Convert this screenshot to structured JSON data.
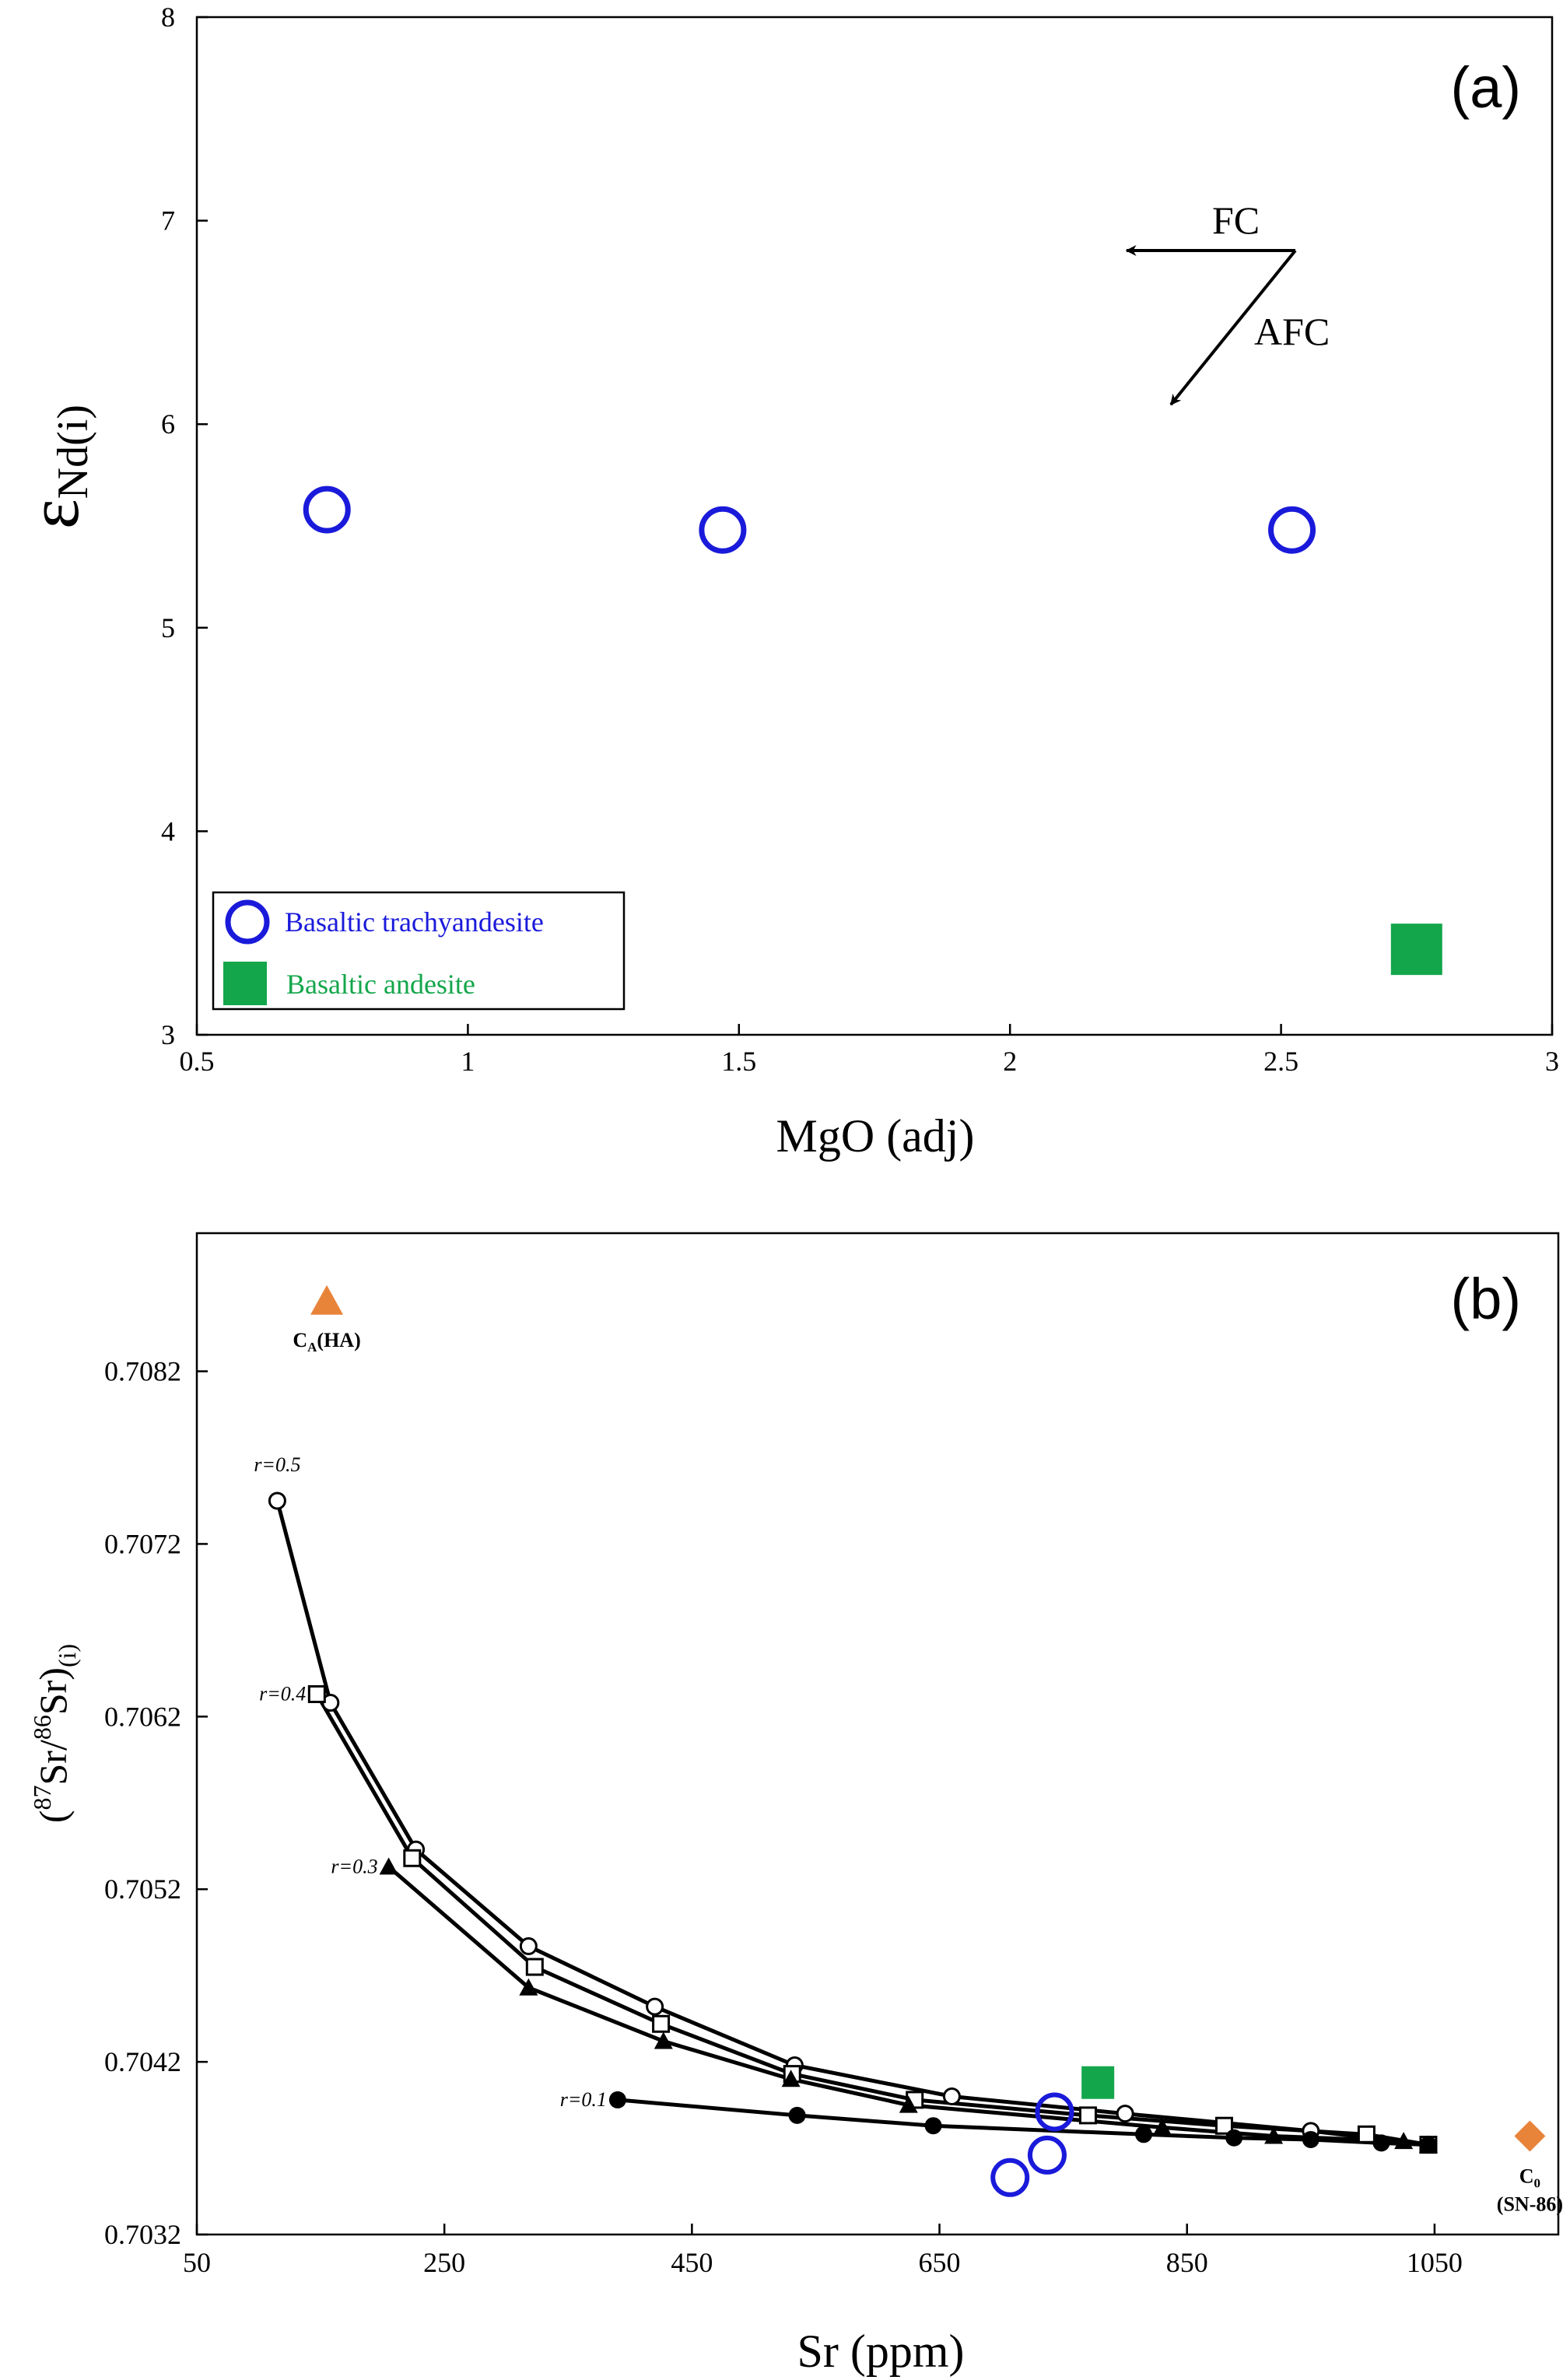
{
  "chart_data": [
    {
      "panel": "(a)",
      "type": "scatter",
      "xlabel": "MgO (adj)",
      "ylabel": "εNd(i)",
      "ylabel_main": "ε",
      "ylabel_sub": "Nd(i)",
      "xlim": [
        0.5,
        3
      ],
      "ylim": [
        3,
        8
      ],
      "xticks": [
        "0.5",
        "1",
        "1.5",
        "2",
        "2.5",
        "3"
      ],
      "yticks": [
        "3",
        "4",
        "5",
        "6",
        "7",
        "8"
      ],
      "grid": false,
      "legend_position": "bottom-left",
      "series": [
        {
          "name": "Basaltic trachyandesite",
          "marker": "open-circle",
          "color": "#1a1adb",
          "points": [
            [
              0.74,
              5.58
            ],
            [
              1.47,
              5.48
            ],
            [
              2.52,
              5.48
            ]
          ]
        },
        {
          "name": "Basaltic andesite",
          "marker": "filled-square",
          "color": "#13a64b",
          "points": [
            [
              2.75,
              3.42
            ]
          ]
        }
      ],
      "annotations": {
        "fc": "FC",
        "afc": "AFC"
      }
    },
    {
      "panel": "(b)",
      "type": "line",
      "xlabel": "Sr (ppm)",
      "ylabel": "(87Sr/86Sr)(i)",
      "xlim": [
        50,
        1150
      ],
      "ylim": [
        0.7032,
        0.709
      ],
      "xticks": [
        "50",
        "250",
        "450",
        "650",
        "850",
        "1050"
      ],
      "yticks": [
        "0.7032",
        "0.7042",
        "0.7052",
        "0.7062",
        "0.7072",
        "0.7082"
      ],
      "grid": false,
      "curves": [
        {
          "name": "r=0.5",
          "marker": "open-circle",
          "points": [
            [
              115,
              0.70745
            ],
            [
              158,
              0.70628
            ],
            [
              227,
              0.70543
            ],
            [
              318,
              0.70487
            ],
            [
              420,
              0.70452
            ],
            [
              533,
              0.70418
            ],
            [
              660,
              0.704
            ],
            [
              800,
              0.7039
            ],
            [
              950,
              0.7038
            ],
            [
              1045,
              0.70372
            ]
          ]
        },
        {
          "name": "r=0.4",
          "marker": "open-square",
          "points": [
            [
              147,
              0.70633
            ],
            [
              224,
              0.70538
            ],
            [
              323,
              0.70475
            ],
            [
              425,
              0.70442
            ],
            [
              531,
              0.70413
            ],
            [
              630,
              0.70398
            ],
            [
              770,
              0.70389
            ],
            [
              880,
              0.70383
            ],
            [
              995,
              0.70378
            ],
            [
              1045,
              0.70372
            ]
          ]
        },
        {
          "name": "r=0.3",
          "marker": "filled-triangle",
          "points": [
            [
              205,
              0.70533
            ],
            [
              318,
              0.70463
            ],
            [
              427,
              0.70432
            ],
            [
              530,
              0.7041
            ],
            [
              625,
              0.70395
            ],
            [
              830,
              0.70382
            ],
            [
              920,
              0.70377
            ],
            [
              1025,
              0.70374
            ],
            [
              1045,
              0.70372
            ]
          ]
        },
        {
          "name": "r=0.1",
          "marker": "filled-circle",
          "points": [
            [
              390,
              0.70398
            ],
            [
              535,
              0.70389
            ],
            [
              645,
              0.70383
            ],
            [
              815,
              0.70378
            ],
            [
              888,
              0.70376
            ],
            [
              950,
              0.70375
            ],
            [
              1007,
              0.70373
            ],
            [
              1045,
              0.70372
            ]
          ]
        }
      ],
      "samples": [
        {
          "name": "Basaltic trachyandesite",
          "marker": "open-circle",
          "color": "#1a1adb",
          "points": [
            [
              707,
              0.70353
            ],
            [
              737,
              0.70366
            ],
            [
              743,
              0.70391
            ]
          ]
        },
        {
          "name": "Basaltic andesite",
          "marker": "filled-square",
          "color": "#13a64b",
          "points": [
            [
              778,
              0.70408
            ]
          ]
        }
      ],
      "end_members": [
        {
          "name": "CA(HA)",
          "main": "C",
          "sub": "A",
          "rest": "(HA)",
          "marker": "triangle",
          "color": "#e8843a",
          "point": [
            155,
            0.7086
          ]
        },
        {
          "name": "C0 (SN-86)",
          "main": "C",
          "sub": "0",
          "rest": "(SN-86)",
          "marker": "diamond",
          "color": "#e8843a",
          "point": [
            1127,
            0.70377
          ]
        }
      ]
    }
  ]
}
